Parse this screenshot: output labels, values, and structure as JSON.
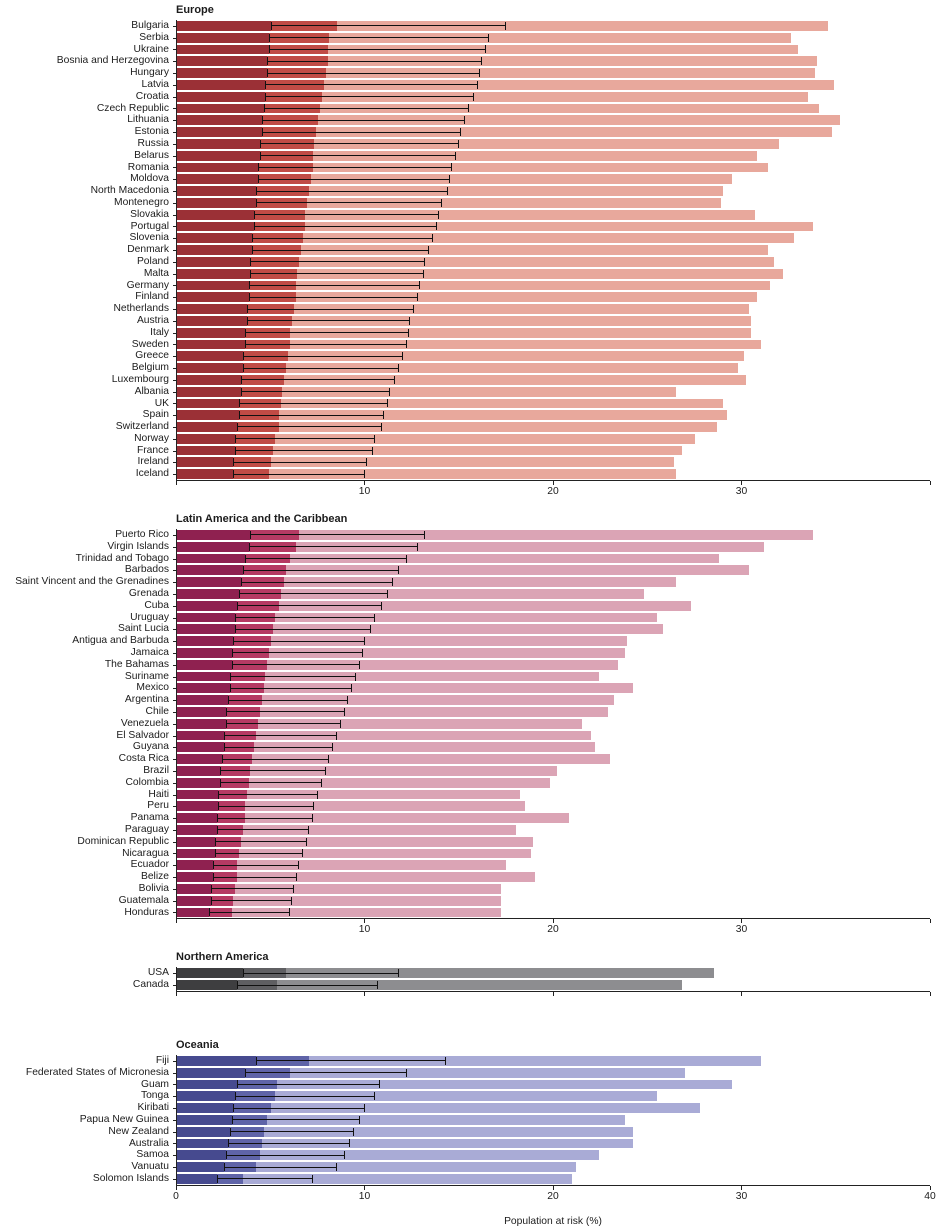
{
  "chart_data": {
    "type": "bar",
    "orientation": "horizontal",
    "xlabel": "Population at risk (%)",
    "x_max": 40,
    "x_ticks": [
      0,
      10,
      20,
      30,
      40
    ],
    "grid": false,
    "legend": "none",
    "ci_color": "#111111",
    "columns": [
      "label",
      "ci_low",
      "dark_value",
      "ci_high",
      "light_value"
    ],
    "panels": [
      {
        "title": "Europe",
        "colors": {
          "darkest": "#9b3036",
          "dark": "#c04b45",
          "light": "#e8a89c"
        },
        "tick_labels": [
          10,
          20,
          30
        ],
        "rows": [
          [
            "Bulgaria",
            5.0,
            8.5,
            17.5,
            34.6
          ],
          [
            "Serbia",
            4.9,
            8.1,
            16.6,
            32.6
          ],
          [
            "Ukraine",
            4.9,
            8.0,
            16.4,
            33.0
          ],
          [
            "Bosnia and Herzegovina",
            4.8,
            8.0,
            16.2,
            34.0
          ],
          [
            "Hungary",
            4.8,
            7.9,
            16.1,
            33.9
          ],
          [
            "Latvia",
            4.7,
            7.8,
            16.0,
            34.9
          ],
          [
            "Croatia",
            4.7,
            7.7,
            15.8,
            33.5
          ],
          [
            "Czech Republic",
            4.6,
            7.6,
            15.5,
            34.1
          ],
          [
            "Lithuania",
            4.5,
            7.5,
            15.3,
            35.2
          ],
          [
            "Estonia",
            4.5,
            7.4,
            15.1,
            34.8
          ],
          [
            "Russia",
            4.4,
            7.3,
            15.0,
            32.0
          ],
          [
            "Belarus",
            4.4,
            7.2,
            14.8,
            30.8
          ],
          [
            "Romania",
            4.3,
            7.2,
            14.6,
            31.4
          ],
          [
            "Moldova",
            4.3,
            7.1,
            14.5,
            29.5
          ],
          [
            "North Macedonia",
            4.2,
            7.0,
            14.4,
            29.0
          ],
          [
            "Montenegro",
            4.2,
            6.9,
            14.1,
            28.9
          ],
          [
            "Slovakia",
            4.1,
            6.8,
            13.9,
            30.7
          ],
          [
            "Portugal",
            4.1,
            6.8,
            13.8,
            33.8
          ],
          [
            "Slovenia",
            4.0,
            6.7,
            13.6,
            32.8
          ],
          [
            "Denmark",
            4.0,
            6.6,
            13.4,
            31.4
          ],
          [
            "Poland",
            3.9,
            6.5,
            13.2,
            31.7
          ],
          [
            "Malta",
            3.9,
            6.4,
            13.1,
            32.2
          ],
          [
            "Germany",
            3.8,
            6.3,
            12.9,
            31.5
          ],
          [
            "Finland",
            3.8,
            6.3,
            12.8,
            30.8
          ],
          [
            "Netherlands",
            3.7,
            6.2,
            12.6,
            30.4
          ],
          [
            "Austria",
            3.7,
            6.1,
            12.4,
            30.5
          ],
          [
            "Italy",
            3.6,
            6.0,
            12.3,
            30.5
          ],
          [
            "Sweden",
            3.6,
            6.0,
            12.2,
            31.0
          ],
          [
            "Greece",
            3.5,
            5.9,
            12.0,
            30.1
          ],
          [
            "Belgium",
            3.5,
            5.8,
            11.8,
            29.8
          ],
          [
            "Luxembourg",
            3.4,
            5.7,
            11.6,
            30.2
          ],
          [
            "Albania",
            3.4,
            5.6,
            11.3,
            26.5
          ],
          [
            "UK",
            3.3,
            5.5,
            11.2,
            29.0
          ],
          [
            "Spain",
            3.3,
            5.4,
            11.0,
            29.2
          ],
          [
            "Switzerland",
            3.2,
            5.4,
            10.9,
            28.7
          ],
          [
            "Norway",
            3.1,
            5.2,
            10.5,
            27.5
          ],
          [
            "France",
            3.1,
            5.1,
            10.4,
            26.8
          ],
          [
            "Ireland",
            3.0,
            5.0,
            10.1,
            26.4
          ],
          [
            "Iceland",
            3.0,
            4.9,
            10.0,
            26.5
          ]
        ]
      },
      {
        "title": "Latin America and the Caribbean",
        "colors": {
          "darkest": "#8f2150",
          "dark": "#b53a63",
          "light": "#dba4b5"
        },
        "tick_labels": [
          10,
          20,
          30
        ],
        "rows": [
          [
            "Puerto Rico",
            3.9,
            6.5,
            13.2,
            33.8
          ],
          [
            "Virgin Islands",
            3.8,
            6.3,
            12.8,
            31.2
          ],
          [
            "Trinidad and Tobago",
            3.6,
            6.0,
            12.2,
            28.8
          ],
          [
            "Barbados",
            3.5,
            5.8,
            11.8,
            30.4
          ],
          [
            "Saint Vincent and the Grenadines",
            3.4,
            5.7,
            11.5,
            26.5
          ],
          [
            "Grenada",
            3.3,
            5.5,
            11.2,
            24.8
          ],
          [
            "Cuba",
            3.2,
            5.4,
            10.9,
            27.3
          ],
          [
            "Uruguay",
            3.1,
            5.2,
            10.5,
            25.5
          ],
          [
            "Saint Lucia",
            3.1,
            5.1,
            10.3,
            25.8
          ],
          [
            "Antigua and Barbuda",
            3.0,
            5.0,
            10.0,
            23.9
          ],
          [
            "Jamaica",
            2.9,
            4.9,
            9.9,
            23.8
          ],
          [
            "The Bahamas",
            2.9,
            4.8,
            9.7,
            23.4
          ],
          [
            "Suriname",
            2.8,
            4.7,
            9.5,
            22.4
          ],
          [
            "Mexico",
            2.8,
            4.6,
            9.3,
            24.2
          ],
          [
            "Argentina",
            2.7,
            4.5,
            9.1,
            23.2
          ],
          [
            "Chile",
            2.6,
            4.4,
            8.9,
            22.9
          ],
          [
            "Venezuela",
            2.6,
            4.3,
            8.7,
            21.5
          ],
          [
            "El Salvador",
            2.5,
            4.2,
            8.5,
            22.0
          ],
          [
            "Guyana",
            2.5,
            4.1,
            8.3,
            22.2
          ],
          [
            "Costa Rica",
            2.4,
            4.0,
            8.1,
            23.0
          ],
          [
            "Brazil",
            2.3,
            3.9,
            7.9,
            20.2
          ],
          [
            "Colombia",
            2.3,
            3.8,
            7.7,
            19.8
          ],
          [
            "Haiti",
            2.2,
            3.7,
            7.5,
            18.2
          ],
          [
            "Peru",
            2.2,
            3.6,
            7.3,
            18.5
          ],
          [
            "Panama",
            2.1,
            3.6,
            7.2,
            20.8
          ],
          [
            "Paraguay",
            2.1,
            3.5,
            7.0,
            18.0
          ],
          [
            "Dominican Republic",
            2.0,
            3.4,
            6.9,
            18.9
          ],
          [
            "Nicaragua",
            2.0,
            3.3,
            6.7,
            18.8
          ],
          [
            "Ecuador",
            1.9,
            3.2,
            6.5,
            17.5
          ],
          [
            "Belize",
            1.9,
            3.2,
            6.4,
            19.0
          ],
          [
            "Bolivia",
            1.8,
            3.1,
            6.2,
            17.2
          ],
          [
            "Guatemala",
            1.8,
            3.0,
            6.1,
            17.2
          ],
          [
            "Honduras",
            1.7,
            2.9,
            6.0,
            17.2
          ]
        ]
      },
      {
        "title": "Northern America",
        "colors": {
          "darkest": "#3e3e40",
          "dark": "#5f5f62",
          "light": "#8d8d90"
        },
        "tick_labels": [],
        "rows": [
          [
            "USA",
            3.5,
            5.8,
            11.8,
            28.5
          ],
          [
            "Canada",
            3.2,
            5.3,
            10.7,
            26.8
          ]
        ]
      },
      {
        "title": "Oceania",
        "colors": {
          "darkest": "#464a8f",
          "dark": "#5f64a8",
          "light": "#a9abd6"
        },
        "tick_labels": [
          0,
          10,
          20,
          30,
          40
        ],
        "rows": [
          [
            "Fiji",
            4.2,
            7.0,
            14.3,
            31.0
          ],
          [
            "Federated States of Micronesia",
            3.6,
            6.0,
            12.2,
            27.0
          ],
          [
            "Guam",
            3.2,
            5.3,
            10.8,
            29.5
          ],
          [
            "Tonga",
            3.1,
            5.2,
            10.5,
            25.5
          ],
          [
            "Kiribati",
            3.0,
            5.0,
            10.0,
            27.8
          ],
          [
            "Papua New Guinea",
            2.9,
            4.8,
            9.7,
            23.8
          ],
          [
            "New Zealand",
            2.8,
            4.6,
            9.4,
            24.2
          ],
          [
            "Australia",
            2.7,
            4.5,
            9.2,
            24.2
          ],
          [
            "Samoa",
            2.6,
            4.4,
            8.9,
            22.4
          ],
          [
            "Vanuatu",
            2.5,
            4.2,
            8.5,
            21.2
          ],
          [
            "Solomon Islands",
            2.1,
            3.5,
            7.2,
            21.0
          ]
        ]
      }
    ]
  }
}
